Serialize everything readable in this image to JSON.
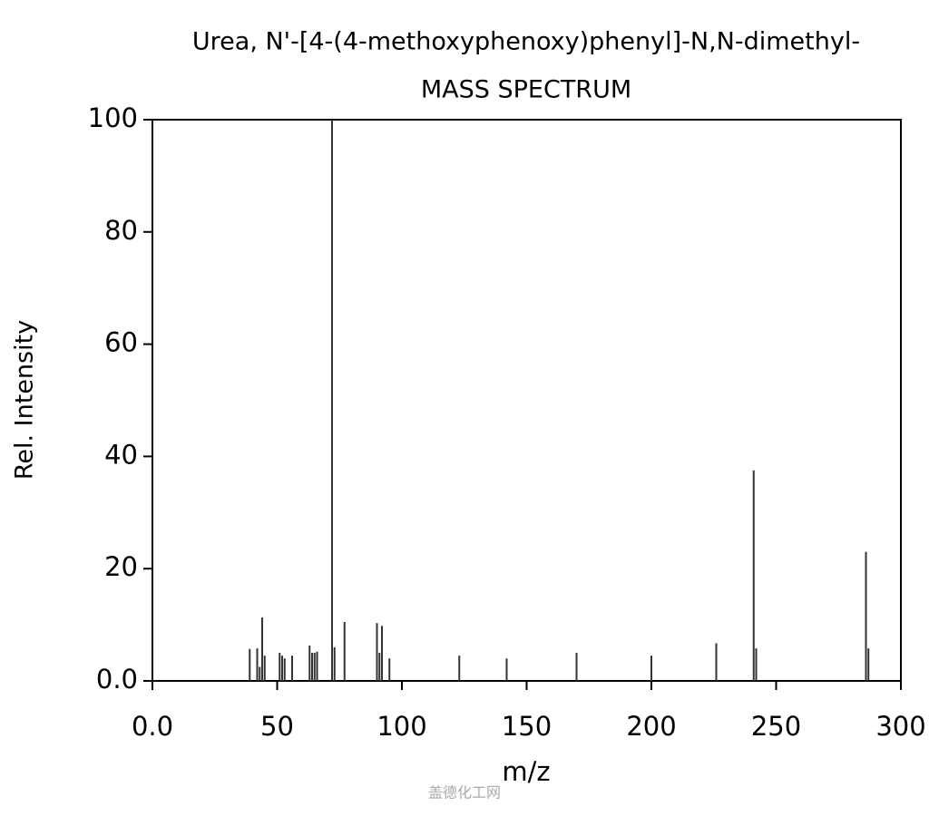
{
  "chart_data": {
    "type": "stem",
    "title": "Urea, N'-[4-(4-methoxyphenoxy)phenyl]-N,N-dimethyl-",
    "subtitle": "MASS SPECTRUM",
    "x_label": "m/z",
    "y_label": "Rel. Intensity",
    "x": [
      39,
      42,
      43,
      44,
      45,
      51,
      52,
      53,
      56,
      63,
      64,
      65,
      66,
      72,
      73,
      77,
      90,
      91,
      92,
      95,
      123,
      142,
      170,
      200,
      226,
      241,
      242,
      286,
      287
    ],
    "values": [
      5.7,
      5.8,
      2.5,
      11.3,
      4.5,
      5,
      4.5,
      4,
      4.5,
      6.3,
      5,
      5,
      5.2,
      100,
      6,
      10.5,
      10.3,
      5,
      9.8,
      4,
      4.5,
      4,
      5,
      4.5,
      6.7,
      37.5,
      5.8,
      23,
      5.8
    ],
    "color": "#333333",
    "xlim": [
      0,
      300
    ],
    "ylim": [
      0,
      100
    ],
    "xticks": [
      {
        "value": 0,
        "label": "0.0"
      },
      50,
      100,
      150,
      200,
      250,
      300
    ],
    "yticks": [
      {
        "value": 0,
        "label": "0.0"
      },
      20,
      40,
      60,
      80,
      100
    ]
  },
  "watermark": "盖德化工网"
}
